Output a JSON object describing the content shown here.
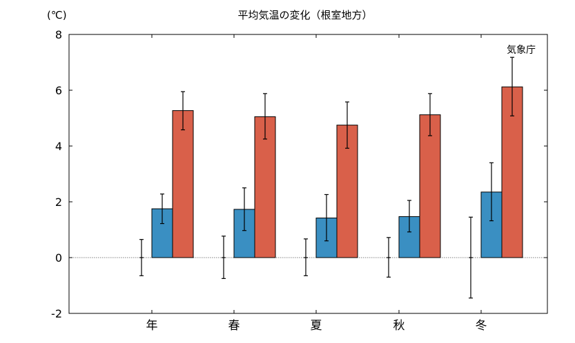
{
  "chart_data": {
    "type": "bar",
    "title": "平均気温の変化（根室地方）",
    "unit_label": "(℃)",
    "source_label": "気象庁",
    "categories": [
      "年",
      "春",
      "夏",
      "秋",
      "冬"
    ],
    "ylim": [
      -2,
      8
    ],
    "yticks": [
      "-2",
      "0",
      "2",
      "4",
      "6",
      "8"
    ],
    "zero_line": "dotted",
    "grid": false,
    "series": [
      {
        "color": "#7f7f7f",
        "values": [
          0,
          0,
          0,
          0,
          0
        ],
        "err_low": [
          -0.65,
          -0.75,
          -0.65,
          -0.7,
          -1.45
        ],
        "err_high": [
          0.65,
          0.77,
          0.67,
          0.72,
          1.45
        ],
        "style": "errorbar-only"
      },
      {
        "color": "#3a8fc2",
        "values": [
          1.75,
          1.73,
          1.42,
          1.47,
          2.35
        ],
        "err_low": [
          1.22,
          0.97,
          0.6,
          0.92,
          1.32
        ],
        "err_high": [
          2.28,
          2.5,
          2.26,
          2.05,
          3.4
        ]
      },
      {
        "color": "#d9604a",
        "values": [
          5.27,
          5.05,
          4.75,
          5.12,
          6.12
        ],
        "err_low": [
          4.58,
          4.25,
          3.92,
          4.37,
          5.08
        ],
        "err_high": [
          5.95,
          5.88,
          5.58,
          5.88,
          7.18
        ]
      }
    ]
  }
}
